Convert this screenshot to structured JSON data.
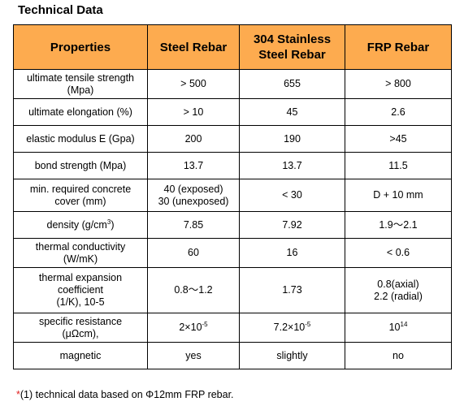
{
  "title": "Technical Data",
  "header": {
    "properties": "Properties",
    "steel": "Steel Rebar",
    "stainless_line1": "304 Stainless",
    "stainless_line2": "Steel Rebar",
    "frp": "FRP Rebar"
  },
  "rows": {
    "tensile": {
      "prop1": "ultimate tensile strength",
      "prop2": "(Mpa)",
      "steel": "> 500",
      "stainless": "655",
      "frp": "> 800"
    },
    "elongation": {
      "prop": "ultimate elongation (%)",
      "steel": "> 10",
      "stainless": "45",
      "frp": "2.6"
    },
    "modulus": {
      "prop": "elastic modulus E (Gpa)",
      "steel": "200",
      "stainless": "190",
      "frp": ">45"
    },
    "bond": {
      "prop": "bond strength (Mpa)",
      "steel": "13.7",
      "stainless": "13.7",
      "frp": "11.5"
    },
    "cover": {
      "prop1": "min. required concrete",
      "prop2": "cover (mm)",
      "steel1": "40 (exposed)",
      "steel2": "30 (unexposed)",
      "stainless": "< 30",
      "frp": "D + 10 mm"
    },
    "density": {
      "prop": "density (g/cm",
      "prop_sup": "3",
      "prop_end": ")",
      "steel": "7.85",
      "stainless": "7.92",
      "frp": "1.9～2.1"
    },
    "conductivity": {
      "prop1": "thermal conductivity",
      "prop2": "(W/mK)",
      "steel": "60",
      "stainless": "16",
      "frp": "< 0.6"
    },
    "expansion": {
      "prop1": "thermal expansion",
      "prop2": "coefficient",
      "prop3": "(1/K), 10-5",
      "steel": "0.8～1.2",
      "stainless": "1.73",
      "frp1": "0.8(axial)",
      "frp2": "2.2 (radial)"
    },
    "resistance": {
      "prop1": "specific resistance",
      "prop2": "(μΩcm),",
      "steel": "2×10",
      "steel_sup": "-5",
      "stainless": "7.2×10",
      "stainless_sup": "-5",
      "frp": "10",
      "frp_sup": "14"
    },
    "magnetic": {
      "prop": "magnetic",
      "steel": "yes",
      "stainless": "slightly",
      "frp": "no"
    }
  },
  "footnote": {
    "star": "*",
    "text": "(1) technical data based on Φ12mm FRP rebar."
  },
  "colors": {
    "header_bg": "#fdab4f",
    "footnote_star": "#e02020"
  }
}
